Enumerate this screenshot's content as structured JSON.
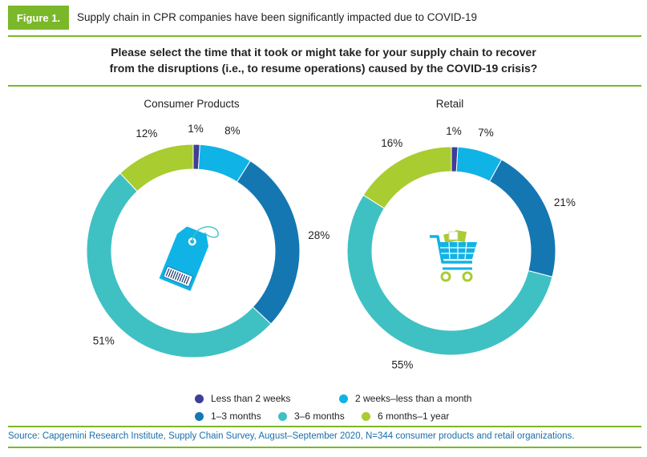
{
  "figure": {
    "label": "Figure 1.",
    "title": "Supply chain in CPR companies have been significantly impacted due to COVID-19"
  },
  "question": {
    "line1": "Please select the time that it took or might take for your supply chain to recover",
    "line2": "from the disruptions (i.e., to resume operations) caused by the COVID-19 crisis?"
  },
  "colors": {
    "accent_green": "#7ab829",
    "less_than_2_weeks": "#3e3f96",
    "two_weeks_to_month": "#10b3e6",
    "one_to_three_months": "#1477b2",
    "three_to_six_months": "#3fc1c3",
    "six_months_to_year": "#a9cc30"
  },
  "chart_data": [
    {
      "type": "pie",
      "variant": "donut",
      "title": "Consumer Products",
      "icon": "price-tag-icon",
      "categories": [
        "Less than 2 weeks",
        "2 weeks–less than a month",
        "1–3 months",
        "3–6 months",
        "6 months–1 year"
      ],
      "values": [
        1,
        8,
        28,
        51,
        12
      ],
      "labels": [
        "1%",
        "8%",
        "28%",
        "51%",
        "12%"
      ]
    },
    {
      "type": "pie",
      "variant": "donut",
      "title": "Retail",
      "icon": "shopping-cart-icon",
      "categories": [
        "Less than 2 weeks",
        "2 weeks–less than a month",
        "1–3 months",
        "3–6 months",
        "6 months–1 year"
      ],
      "values": [
        1,
        7,
        21,
        55,
        16
      ],
      "labels": [
        "1%",
        "7%",
        "21%",
        "55%",
        "16%"
      ]
    }
  ],
  "legend": {
    "items": [
      {
        "label": "Less than 2 weeks",
        "color": "#3e3f96"
      },
      {
        "label": "2 weeks–less than a month",
        "color": "#10b3e6"
      },
      {
        "label": "1–3 months",
        "color": "#1477b2"
      },
      {
        "label": "3–6 months",
        "color": "#3fc1c3"
      },
      {
        "label": "6 months–1 year",
        "color": "#a9cc30"
      }
    ]
  },
  "source": "Source: Capgemini Research Institute, Supply Chain Survey, August–September 2020, N=344 consumer products and retail organizations."
}
